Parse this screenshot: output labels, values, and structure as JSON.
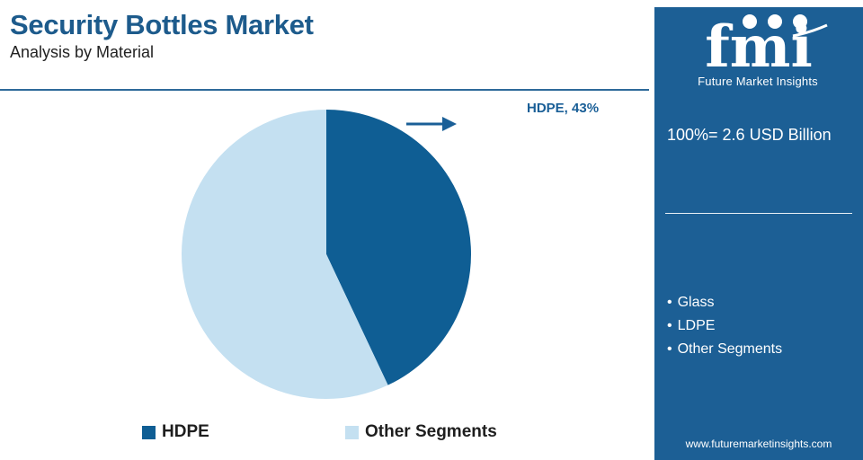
{
  "header": {
    "title": "Security Bottles Market",
    "subtitle": "Analysis by Material"
  },
  "chart_data": {
    "type": "pie",
    "categories": [
      "HDPE",
      "Other Segments"
    ],
    "values": [
      43,
      57
    ],
    "unit": "%",
    "colors": [
      "#0f5e94",
      "#c4e0f1"
    ],
    "callout": "HDPE, 43%",
    "legend_placement": "bottom"
  },
  "legend": {
    "items": [
      {
        "label": "HDPE",
        "color": "#0f5e94"
      },
      {
        "label": "Other Segments",
        "color": "#c4e0f1"
      }
    ]
  },
  "side_panel": {
    "background": "#1c5f95",
    "logo_text": "Future Market Insights",
    "market_size": "100%= 2.6 USD Billion",
    "segments": [
      "Glass",
      "LDPE",
      "Other Segments"
    ],
    "website": "www.futuremarketinsights.com"
  }
}
